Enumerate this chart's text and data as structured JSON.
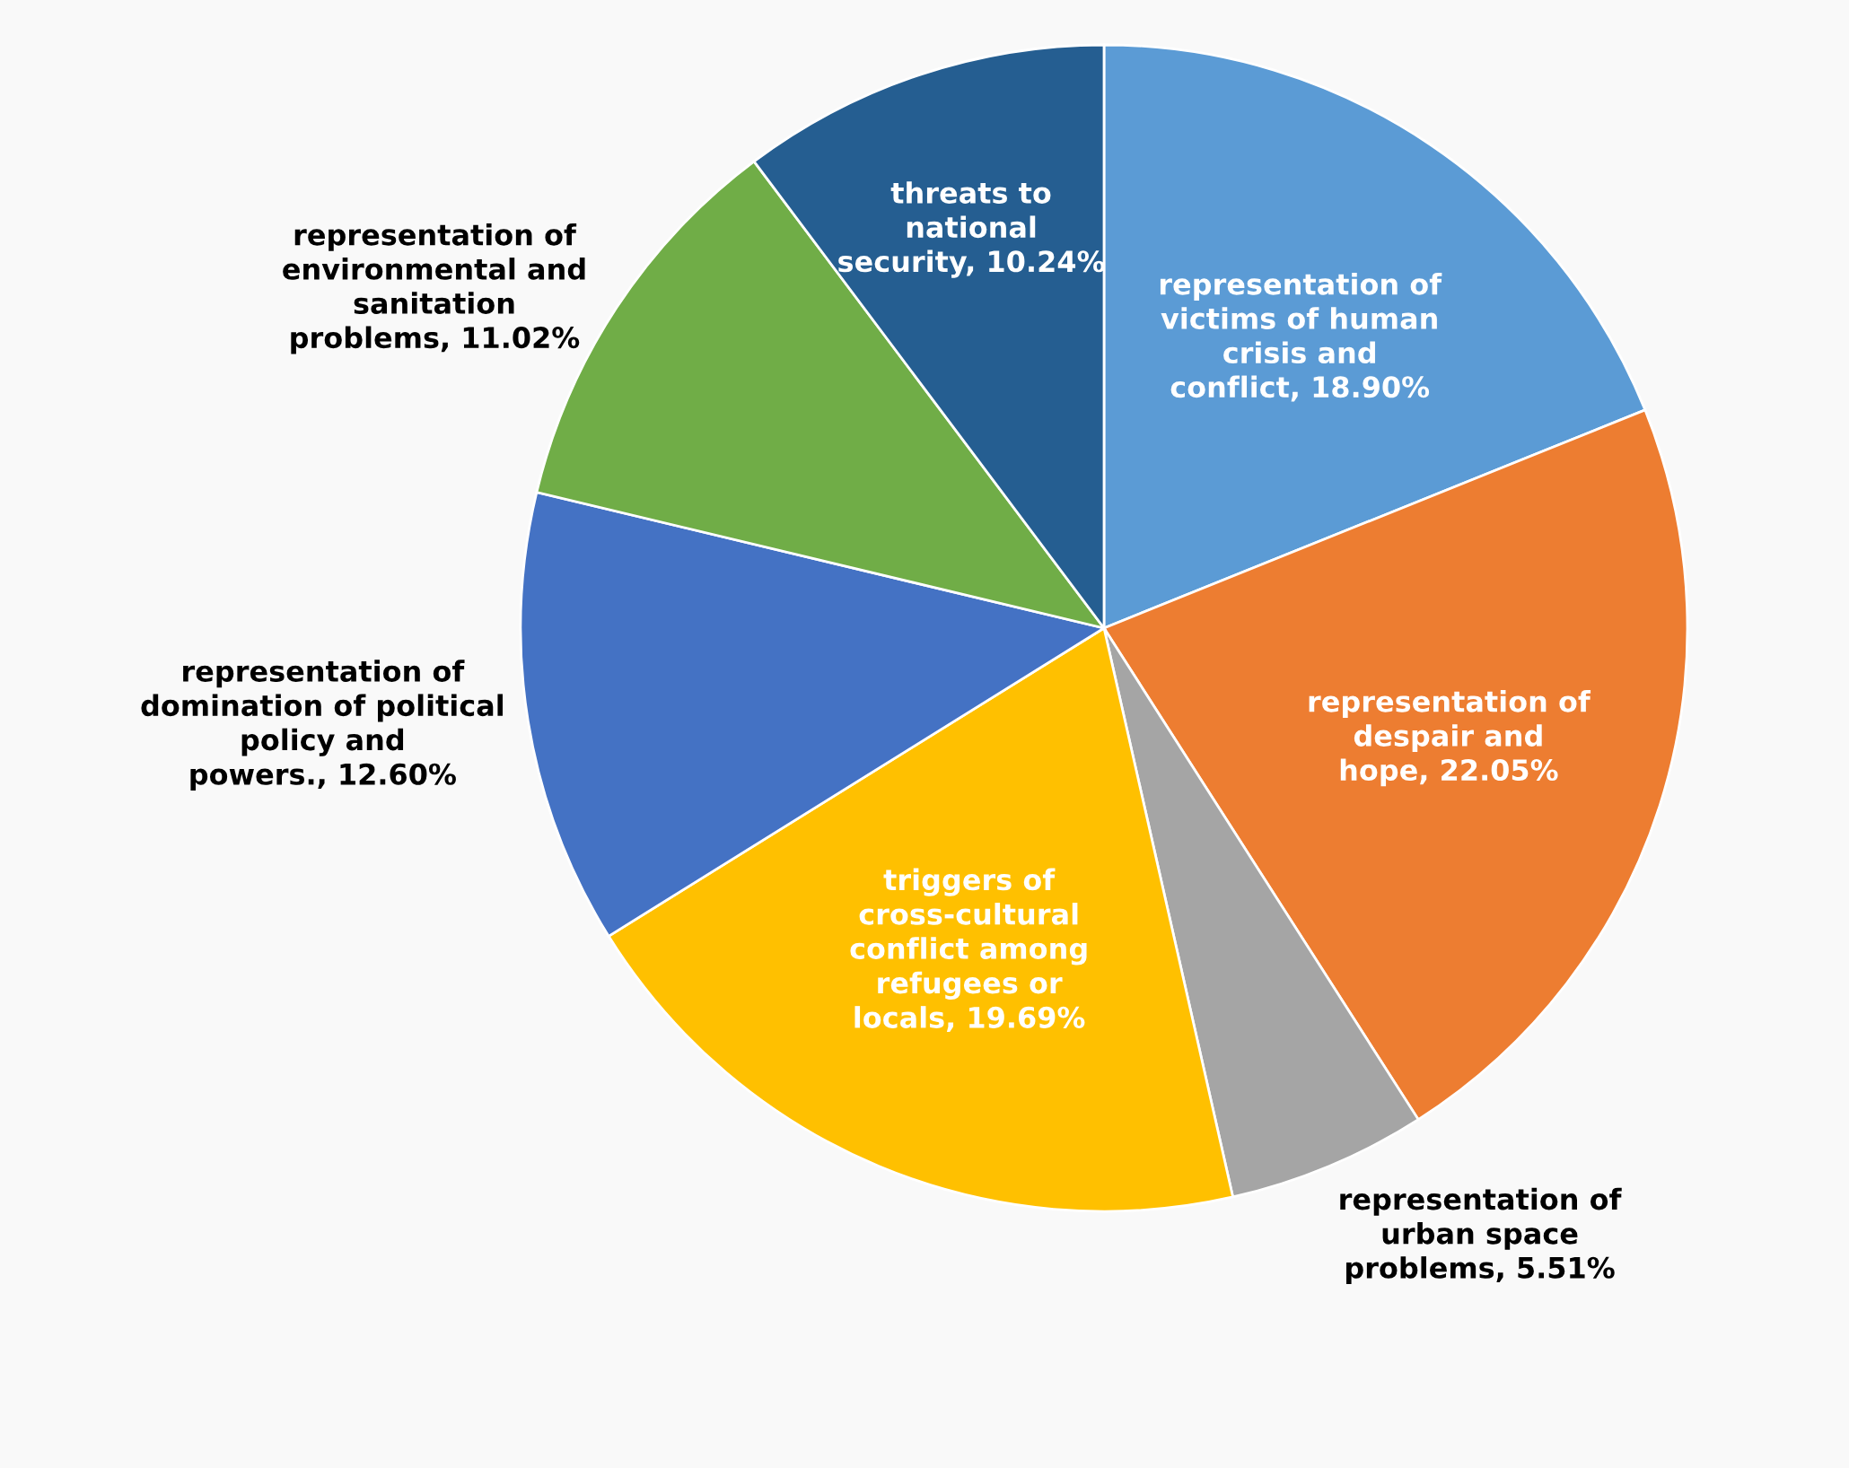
{
  "chart_data": {
    "type": "pie",
    "categories": [
      "representation of victims of human crisis and conflict",
      "representation of despair and hope",
      "representation of urban space problems",
      "triggers of cross-cultural conflict among refugees or locals",
      "representation of domination of political policy and powers.",
      "representation of environmental and sanitation problems",
      "threats to national security"
    ],
    "values": [
      18.9,
      22.05,
      5.51,
      19.69,
      12.6,
      11.02,
      10.24
    ],
    "value_labels": [
      "18.90%",
      "22.05%",
      "5.51%",
      "19.69%",
      "12.60%",
      "11.02%",
      "10.24%"
    ],
    "colors": [
      "#5b9bd5",
      "#ed7d31",
      "#a5a5a5",
      "#ffc000",
      "#4472c4",
      "#70ad47",
      "#255e91"
    ]
  }
}
